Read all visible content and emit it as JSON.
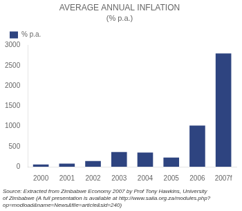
{
  "chart_data": {
    "type": "bar",
    "title": "AVERAGE ANNUAL INFLATION",
    "subtitle": "(% p.a.)",
    "categories": [
      "2000",
      "2001",
      "2002",
      "2003",
      "2004",
      "2005",
      "2006",
      "2007f"
    ],
    "series": [
      {
        "name": "% p.a.",
        "color": "#2E4480",
        "values": [
          55,
          75,
          140,
          365,
          350,
          225,
          1016,
          2800
        ]
      }
    ],
    "ylim": [
      0,
      3000
    ],
    "yticks": [
      0,
      500,
      1000,
      1500,
      2000,
      2500,
      3000
    ],
    "grid": false,
    "legend": "upper left",
    "annotations": [
      "Source: Extracted from Zimbabwe Economy 2007 by Prof Tony Hawkins, University",
      "of Zimbabwe (A full presentation is available at http://www.saiia.org.za/modules.php?",
      "op=modload&name=News&file=article&sid=240)"
    ]
  }
}
